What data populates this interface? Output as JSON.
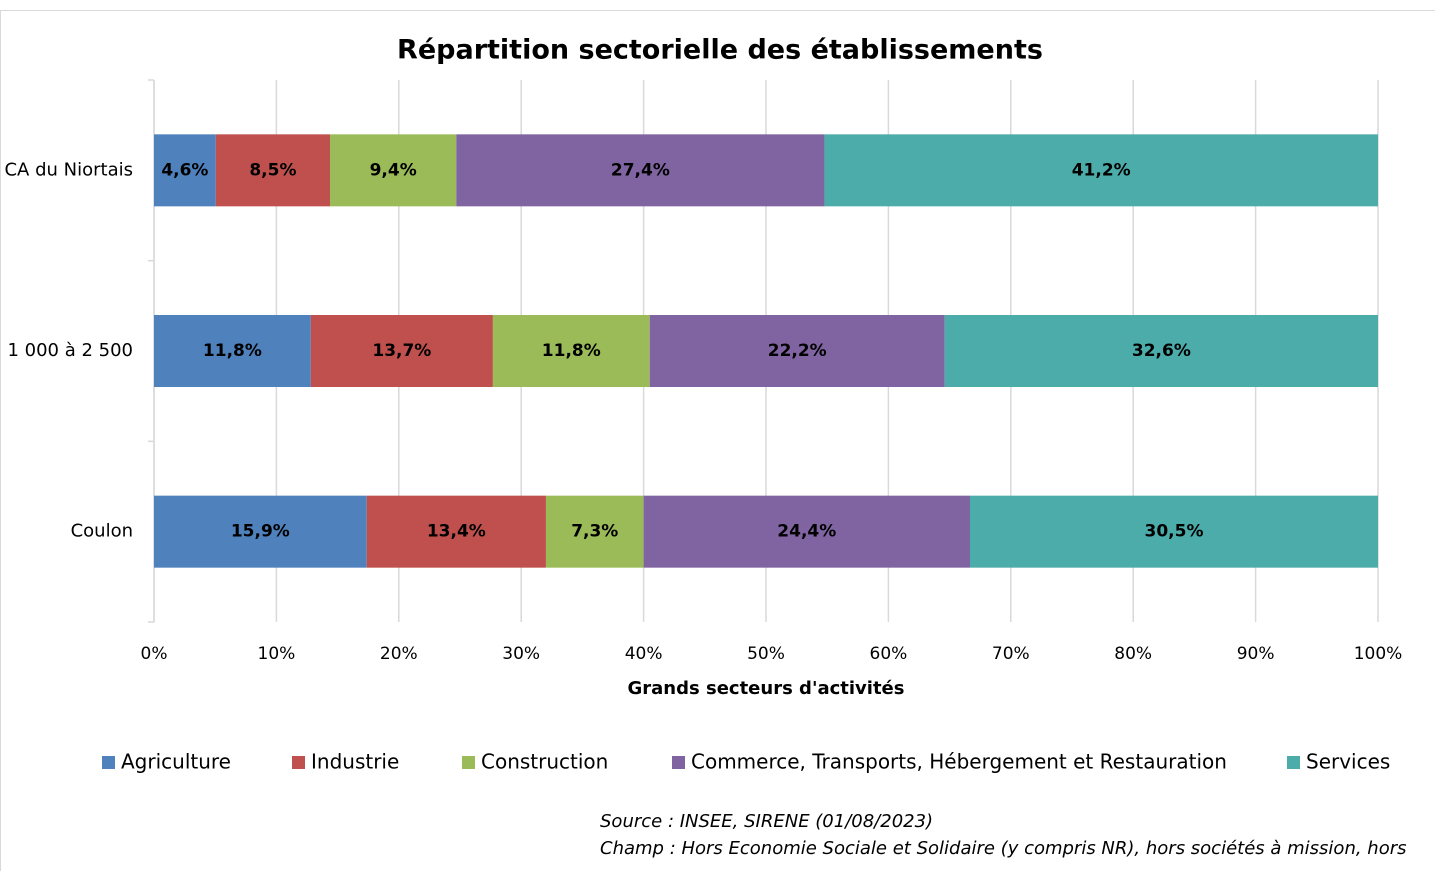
{
  "chart_data": {
    "type": "bar",
    "orientation": "horizontal",
    "stacking": "percent",
    "title": "Répartition sectorielle des établissements",
    "x_label": "Grands secteurs d'activités",
    "categories": [
      "CA du Niortais",
      "1 000 à 2 500",
      "Coulon"
    ],
    "series": [
      {
        "name": "Agriculture",
        "color": "#4f81bd",
        "values": [
          4.6,
          11.8,
          15.9
        ],
        "value_labels": [
          "4,6%",
          "11,8%",
          "15,9%"
        ]
      },
      {
        "name": "Industrie",
        "color": "#c0504d",
        "values": [
          8.5,
          13.7,
          13.4
        ],
        "value_labels": [
          "8,5%",
          "13,7%",
          "13,4%"
        ]
      },
      {
        "name": "Construction",
        "color": "#9bbb59",
        "values": [
          9.4,
          11.8,
          7.3
        ],
        "value_labels": [
          "9,4%",
          "11,8%",
          "7,3%"
        ]
      },
      {
        "name": "Commerce, Transports, Hébergement et Restauration",
        "color": "#8064a2",
        "values": [
          27.4,
          22.2,
          24.4
        ],
        "value_labels": [
          "27,4%",
          "22,2%",
          "24,4%"
        ]
      },
      {
        "name": "Services",
        "color": "#4bacaa",
        "values": [
          41.2,
          32.6,
          30.5
        ],
        "value_labels": [
          "41,2%",
          "32,6%",
          "30,5%"
        ]
      }
    ],
    "xlim": [
      0,
      100
    ],
    "xticks": [
      {
        "value": 0,
        "label": "0%"
      },
      {
        "value": 10,
        "label": "10%"
      },
      {
        "value": 20,
        "label": "20%"
      },
      {
        "value": 30,
        "label": "30%"
      },
      {
        "value": 40,
        "label": "40%"
      },
      {
        "value": 50,
        "label": "50%"
      },
      {
        "value": 60,
        "label": "60%"
      },
      {
        "value": 70,
        "label": "70%"
      },
      {
        "value": 80,
        "label": "80%"
      },
      {
        "value": 90,
        "label": "90%"
      },
      {
        "value": 100,
        "label": "100%"
      }
    ],
    "grid": true,
    "legend": "bottom",
    "notes": [
      "Source : INSEE, SIRENE (01/08/2023)",
      "Champ : Hors Economie Sociale et Solidaire (y compris NR), hors sociétés à mission, hors"
    ]
  }
}
